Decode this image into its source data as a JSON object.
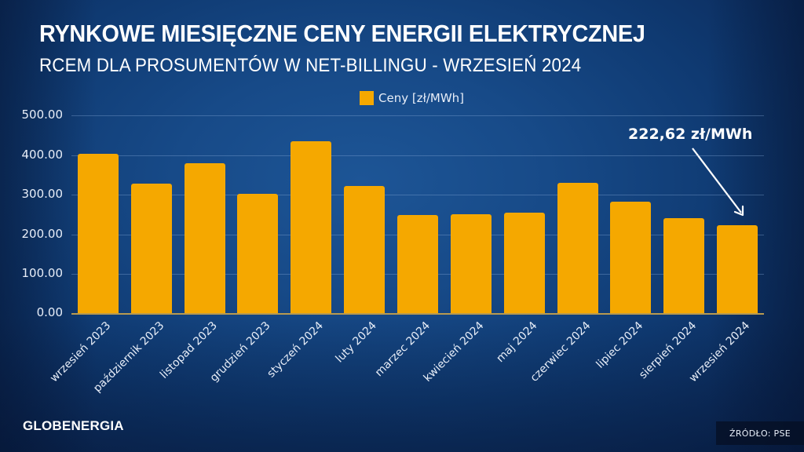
{
  "header": {
    "title": "RYNKOWE MIESIĘCZNE CENY ENERGII ELEKTRYCZNEJ",
    "subtitle": "RCEM DLA PROSUMENTÓW W NET-BILLINGU - WRZESIEŃ 2024"
  },
  "legend": {
    "label": "Ceny [zł/MWh]",
    "color": "#f5a800"
  },
  "annotation": {
    "text": "222,62 zł/MWh",
    "target": "wrzesień 2024"
  },
  "footer": {
    "logo": "GLOBENERGIA",
    "source": "ŹRÓDŁO: PSE"
  },
  "axis": {
    "y_ticks": [
      "500.00",
      "400.00",
      "300.00",
      "200.00",
      "100.00",
      "0.00"
    ]
  },
  "chart_data": {
    "type": "bar",
    "title": "RYNKOWE MIESIĘCZNE CENY ENERGII ELEKTRYCZNEJ",
    "subtitle": "RCEM DLA PROSUMENTÓW W NET-BILLINGU - WRZESIEŃ 2024",
    "categories": [
      "wrzesień 2023",
      "październik 2023",
      "listopad 2023",
      "grudzień 2023",
      "styczeń 2024",
      "luty 2024",
      "marzec 2024",
      "kwiecień 2024",
      "maj 2024",
      "czerwiec 2024",
      "lipiec 2024",
      "sierpień 2024",
      "wrzesień 2024"
    ],
    "series": [
      {
        "name": "Ceny [zł/MWh]",
        "color": "#f5a800",
        "values": [
          403,
          328,
          379,
          303,
          435,
          323,
          248,
          251,
          254,
          329,
          282,
          241,
          222.62
        ]
      }
    ],
    "xlabel": "",
    "ylabel": "",
    "ylim": [
      0,
      500
    ],
    "yticks": [
      0,
      100,
      200,
      300,
      400,
      500
    ],
    "grid": true,
    "legend_position": "top-center",
    "annotations": [
      {
        "text": "222,62 zł/MWh",
        "category": "wrzesień 2024",
        "arrow": true
      }
    ]
  }
}
